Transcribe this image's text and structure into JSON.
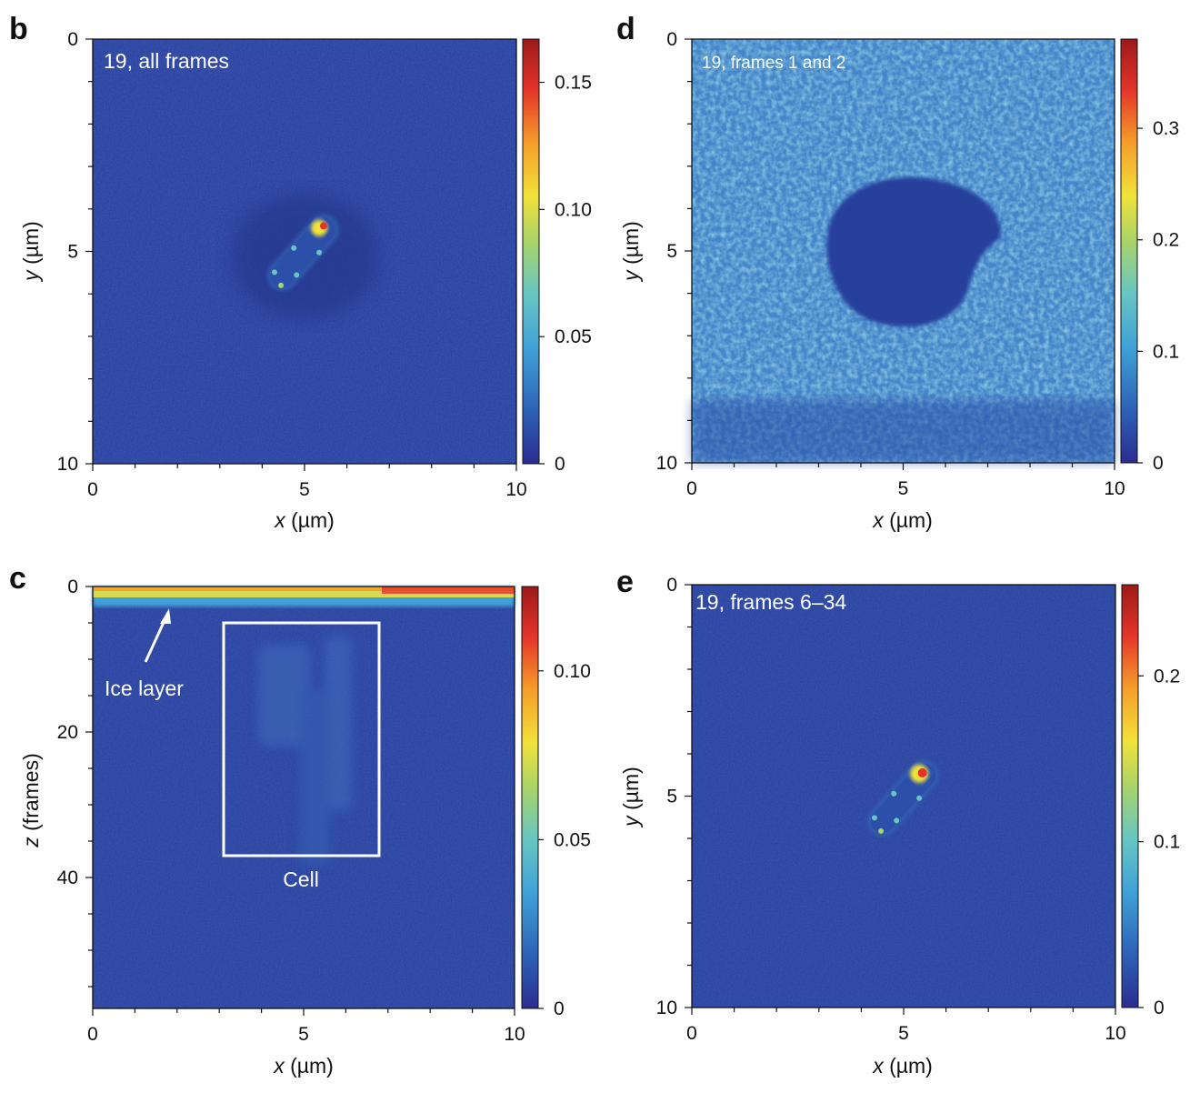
{
  "chart_data": [
    {
      "panel": "b",
      "type": "heatmap",
      "overlay_label": "19, all frames",
      "xlabel_var": "x",
      "xlabel_unit": " (µm)",
      "ylabel_var": "y",
      "ylabel_unit": " (µm)",
      "xlim": [
        0,
        10
      ],
      "ylim": [
        0,
        10
      ],
      "y_inverted": true,
      "x_ticks": [
        "0",
        "5",
        "10"
      ],
      "y_ticks": [
        "0",
        "5",
        "10"
      ],
      "colorbar_range": [
        0,
        0.167
      ],
      "colorbar_ticks": [
        "0",
        "0.05",
        "0.10",
        "0.15"
      ],
      "colorbar_tick_values": [
        0,
        0.05,
        0.1,
        0.15
      ],
      "colormap": [
        "#2b2d8f",
        "#2d5fb5",
        "#3fa0d8",
        "#67c6c2",
        "#a7d36a",
        "#f2e23a",
        "#f59a2a",
        "#e4342a",
        "#9c1a1a"
      ],
      "background_color": "#28409e",
      "feature": "rod-shaped cell near (5.1, 5.0) µm, bright at upper-right end, darker halo around it"
    },
    {
      "panel": "d",
      "type": "heatmap",
      "overlay_label": "19, frames 1 and 2",
      "xlabel_var": "x",
      "xlabel_unit": " (µm)",
      "ylabel_var": "y",
      "ylabel_unit": " (µm)",
      "xlim": [
        0,
        10
      ],
      "ylim": [
        0,
        10
      ],
      "y_inverted": true,
      "x_ticks": [
        "0",
        "5",
        "10"
      ],
      "y_ticks": [
        "0",
        "5",
        "10"
      ],
      "colorbar_range": [
        0,
        0.38
      ],
      "colorbar_ticks": [
        "0",
        "0.1",
        "0.2",
        "0.3"
      ],
      "colorbar_tick_values": [
        0,
        0.1,
        0.2,
        0.3
      ],
      "colormap": [
        "#2b2d8f",
        "#2d5fb5",
        "#3fa0d8",
        "#67c6c2",
        "#a7d36a",
        "#f2e23a",
        "#f59a2a",
        "#e4342a",
        "#9c1a1a"
      ],
      "background_color": "#3a7fc4",
      "feature": "noisy speckled field with a dark elliptical void centred near (5.0, 5.3) µm; dark band along bottom"
    },
    {
      "panel": "c",
      "type": "heatmap",
      "xlabel_var": "x",
      "xlabel_unit": " (µm)",
      "ylabel_var": "z",
      "ylabel_unit": " (frames)",
      "xlim": [
        0,
        10
      ],
      "ylim": [
        0,
        58
      ],
      "y_inverted": true,
      "x_ticks": [
        "0",
        "5",
        "10"
      ],
      "y_ticks": [
        "0",
        "20",
        "40"
      ],
      "y_tick_values": [
        0,
        20,
        40
      ],
      "colorbar_range": [
        0,
        0.125
      ],
      "colorbar_ticks": [
        "0",
        "0.05",
        "0.10"
      ],
      "colorbar_tick_values": [
        0,
        0.05,
        0.1
      ],
      "colormap": [
        "#2b2d8f",
        "#2d5fb5",
        "#3fa0d8",
        "#67c6c2",
        "#a7d36a",
        "#f2e23a",
        "#f59a2a",
        "#e4342a",
        "#9c1a1a"
      ],
      "background_color": "#28409e",
      "annotations": [
        {
          "text": "Ice layer",
          "points_to": {
            "x": 1.8,
            "z": 2
          }
        },
        {
          "text": "Cell",
          "box": {
            "x0": 3.1,
            "x1": 6.8,
            "z0": 5,
            "z1": 37
          }
        }
      ],
      "feature": "bright ice layer along z ≈ 0–2 frames; faint cell column inside the box"
    },
    {
      "panel": "e",
      "type": "heatmap",
      "overlay_label": "19, frames 6–34",
      "xlabel_var": "x",
      "xlabel_unit": " (µm)",
      "ylabel_var": "y",
      "ylabel_unit": " (µm)",
      "xlim": [
        0,
        10
      ],
      "ylim": [
        0,
        10
      ],
      "y_inverted": true,
      "x_ticks": [
        "0",
        "5",
        "10"
      ],
      "y_ticks": [
        "0",
        "5",
        "10"
      ],
      "colorbar_range": [
        0,
        0.255
      ],
      "colorbar_ticks": [
        "0",
        "0.1",
        "0.2"
      ],
      "colorbar_tick_values": [
        0,
        0.1,
        0.2
      ],
      "colormap": [
        "#2b2d8f",
        "#2d5fb5",
        "#3fa0d8",
        "#67c6c2",
        "#a7d36a",
        "#f2e23a",
        "#f59a2a",
        "#e4342a",
        "#9c1a1a"
      ],
      "background_color": "#28409e",
      "feature": "rod-shaped cell near (5.1, 5.0) µm, bright red spot at upper-right end"
    }
  ]
}
